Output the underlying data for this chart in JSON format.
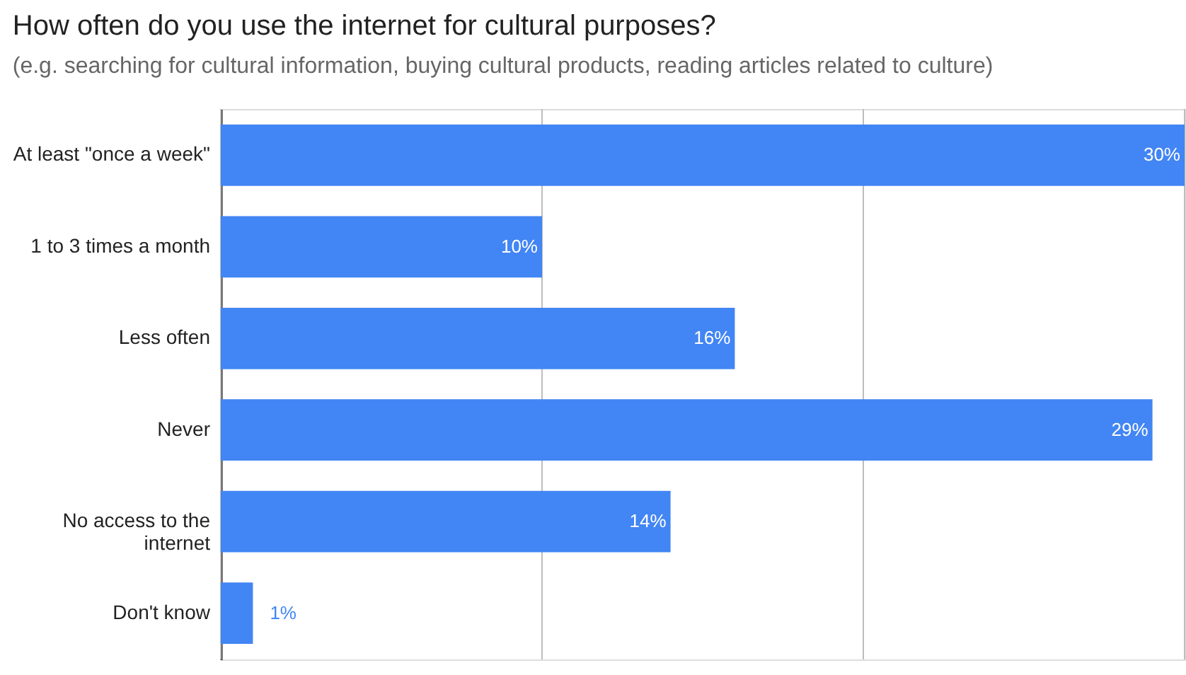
{
  "chart_data": {
    "type": "bar",
    "orientation": "horizontal",
    "title": "How often do you use the internet for cultural purposes?",
    "subtitle": "(e.g. searching for cultural information, buying cultural products, reading articles related to culture)",
    "categories": [
      "At least \"once a week\"",
      "1 to 3 times a month",
      "Less often",
      "Never",
      "No access to the internet",
      "Don't know"
    ],
    "values": [
      30,
      10,
      16,
      29,
      14,
      1
    ],
    "value_labels": [
      "30%",
      "10%",
      "16%",
      "29%",
      "14%",
      "1%"
    ],
    "color": "#4285f4",
    "xlim": [
      0,
      30
    ],
    "xticks": [
      {
        "value": 0,
        "label": null
      },
      {
        "value": 10,
        "label": null
      },
      {
        "value": 20,
        "label": null
      },
      {
        "value": 30,
        "label": null
      }
    ],
    "grid": "x",
    "tick_labels": "y"
  }
}
